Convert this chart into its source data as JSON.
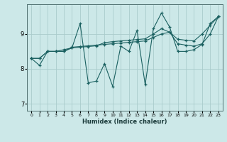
{
  "xlabel": "Humidex (Indice chaleur)",
  "bg_color": "#cce8e8",
  "grid_color": "#aacccc",
  "line_color": "#1a6060",
  "x_data": [
    0,
    1,
    2,
    3,
    4,
    5,
    6,
    7,
    8,
    9,
    10,
    11,
    12,
    13,
    14,
    15,
    16,
    17,
    18,
    19,
    20,
    21,
    22,
    23
  ],
  "line1_y": [
    8.3,
    8.1,
    8.5,
    8.5,
    8.55,
    8.6,
    9.3,
    7.6,
    7.65,
    8.15,
    7.5,
    8.65,
    8.5,
    9.1,
    7.55,
    9.15,
    9.6,
    9.2,
    8.5,
    8.5,
    8.55,
    8.7,
    9.3,
    9.5
  ],
  "line2_y": [
    8.3,
    8.3,
    8.5,
    8.5,
    8.5,
    8.6,
    8.62,
    8.64,
    8.66,
    8.75,
    8.78,
    8.8,
    8.82,
    8.84,
    8.86,
    9.0,
    9.15,
    9.05,
    8.85,
    8.82,
    8.8,
    9.0,
    9.25,
    9.5
  ],
  "line3_y": [
    8.3,
    8.3,
    8.5,
    8.5,
    8.5,
    8.62,
    8.64,
    8.66,
    8.68,
    8.7,
    8.72,
    8.74,
    8.76,
    8.78,
    8.8,
    8.9,
    9.0,
    9.05,
    8.72,
    8.68,
    8.65,
    8.72,
    9.0,
    9.5
  ],
  "ylim": [
    6.8,
    9.85
  ],
  "yticks": [
    7,
    8,
    9
  ],
  "xlim": [
    -0.5,
    23.5
  ],
  "xticks": [
    0,
    1,
    2,
    3,
    4,
    5,
    6,
    7,
    8,
    9,
    10,
    11,
    12,
    13,
    14,
    15,
    16,
    17,
    18,
    19,
    20,
    21,
    22,
    23
  ]
}
